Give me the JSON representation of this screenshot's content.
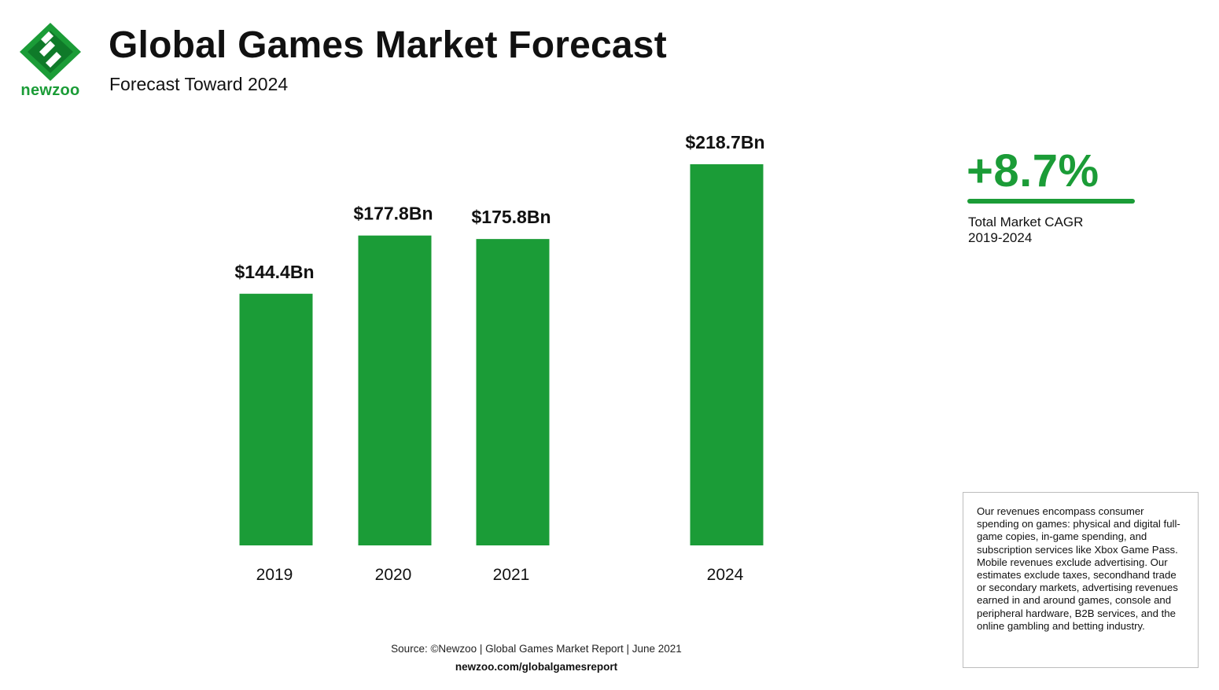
{
  "brand": {
    "name": "newzoo",
    "color": "#1b9c37"
  },
  "header": {
    "title": "Global Games Market Forecast",
    "subtitle": "Forecast Toward 2024"
  },
  "chart_data": {
    "type": "bar",
    "title": "Global Games Market Forecast",
    "subtitle": "Forecast Toward 2024",
    "categories": [
      "2019",
      "2020",
      "2021",
      "2024"
    ],
    "values": [
      144.4,
      177.8,
      175.8,
      218.7
    ],
    "data_labels": [
      "$144.4Bn",
      "$177.8Bn",
      "$175.8Bn",
      "$218.7Bn"
    ],
    "ylabel": "",
    "xlabel": "",
    "ylim": [
      0,
      218.7
    ],
    "grid": false,
    "bar_color": "#1b9c37",
    "axis_visible": false
  },
  "callout": {
    "value": "+8.7%",
    "label_line1": "Total Market CAGR",
    "label_line2": "2019-2024",
    "color": "#1b9c37"
  },
  "note": "Our revenues encompass consumer spending on games: physical and digital full-game copies, in-game spending, and subscription services like Xbox Game Pass. Mobile revenues exclude advertising. Our estimates exclude taxes, secondhand trade or secondary markets, advertising revenues earned in and around games, console and peripheral hardware, B2B services, and the online gambling and betting industry.",
  "footer": {
    "source": "Source: ©Newzoo | Global Games Market Report | June 2021",
    "url": "newzoo.com/globalgamesreport"
  }
}
